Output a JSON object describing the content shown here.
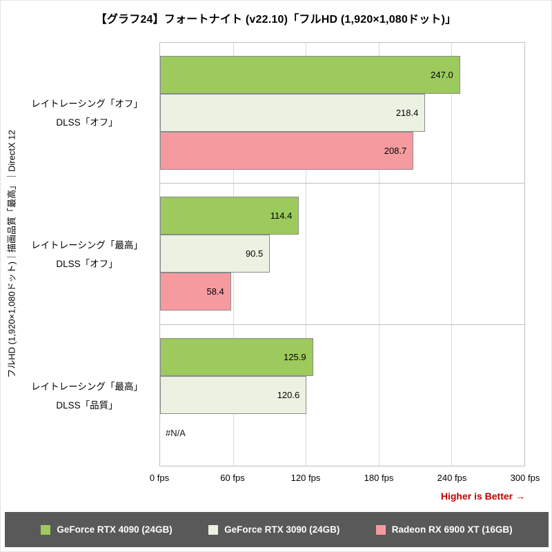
{
  "notes": {
    "higher_is_better": "Higher is Better →"
  },
  "chart_data": {
    "type": "bar",
    "orientation": "horizontal",
    "title": "【グラフ24】フォートナイト (v22.10)「フルHD (1,920×1,080ドット)」",
    "ylabel": "フルHD (1,920×1,080ドット)｜描画品質「最高」｜DirectX 12",
    "xlabel": "fps",
    "xlim": [
      0,
      300
    ],
    "x_ticks": [
      "0 fps",
      "60 fps",
      "120 fps",
      "180 fps",
      "240 fps",
      "300 fps"
    ],
    "grid": true,
    "legend_position": "bottom",
    "na_label": "#N/A",
    "categories": [
      [
        "レイトレーシング「オフ」",
        "DLSS「オフ」"
      ],
      [
        "レイトレーシング「最高」",
        "DLSS「オフ」"
      ],
      [
        "レイトレーシング「最高」",
        "DLSS「品質」"
      ]
    ],
    "series": [
      {
        "name": "GeForce RTX 4090 (24GB)",
        "color": "#9cca5c",
        "values": [
          247.0,
          114.4,
          125.9
        ]
      },
      {
        "name": "GeForce RTX 3090 (24GB)",
        "color": "#ebf2e1",
        "values": [
          218.4,
          90.5,
          120.6
        ]
      },
      {
        "name": "Radeon RX 6900 XT (16GB)",
        "color": "#f59ba0",
        "values": [
          208.7,
          58.4,
          null
        ]
      }
    ]
  }
}
